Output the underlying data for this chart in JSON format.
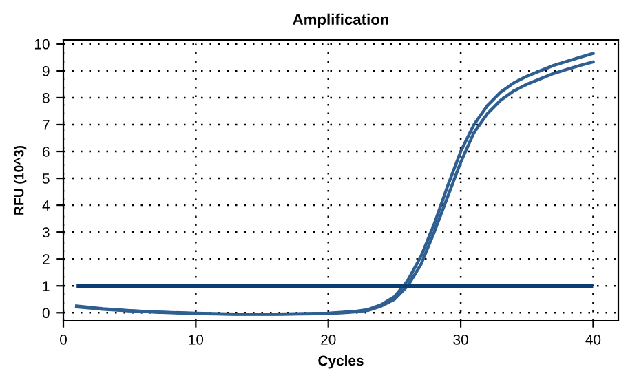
{
  "chart_data": {
    "type": "line",
    "title": "Amplification",
    "xlabel": "Cycles",
    "ylabel": "RFU (10^3)",
    "x": [
      1,
      3,
      5,
      7,
      10,
      13,
      16,
      20,
      22,
      23,
      24,
      25,
      26,
      27,
      28,
      29,
      30,
      31,
      32,
      33,
      34,
      35,
      36,
      37,
      38,
      39,
      40
    ],
    "series": [
      {
        "color": "#2f5f91",
        "values": [
          0.25,
          0.15,
          0.08,
          0.03,
          -0.02,
          -0.05,
          -0.05,
          -0.02,
          0.05,
          0.12,
          0.3,
          0.6,
          1.2,
          2.1,
          3.3,
          4.7,
          6.0,
          7.0,
          7.7,
          8.2,
          8.55,
          8.8,
          9.0,
          9.2,
          9.35,
          9.5,
          9.65
        ]
      },
      {
        "color": "#2f5f91",
        "values": [
          0.22,
          0.13,
          0.07,
          0.02,
          -0.03,
          -0.06,
          -0.06,
          -0.03,
          0.03,
          0.09,
          0.25,
          0.5,
          1.0,
          1.8,
          3.0,
          4.3,
          5.6,
          6.7,
          7.4,
          7.9,
          8.25,
          8.5,
          8.7,
          8.9,
          9.05,
          9.2,
          9.33
        ]
      }
    ],
    "ref_lines": [
      {
        "axis": "y",
        "value": 1,
        "color": "#0a3d73"
      }
    ],
    "xlim": [
      0,
      41.9
    ],
    "xticks": [
      0,
      10,
      20,
      30,
      40
    ],
    "ylim": [
      -0.3,
      10.15
    ],
    "yticks": [
      0,
      1,
      2,
      3,
      4,
      5,
      6,
      7,
      8,
      9,
      10
    ],
    "grid": true,
    "marker": "none",
    "line_style": "solid",
    "legend": false
  }
}
